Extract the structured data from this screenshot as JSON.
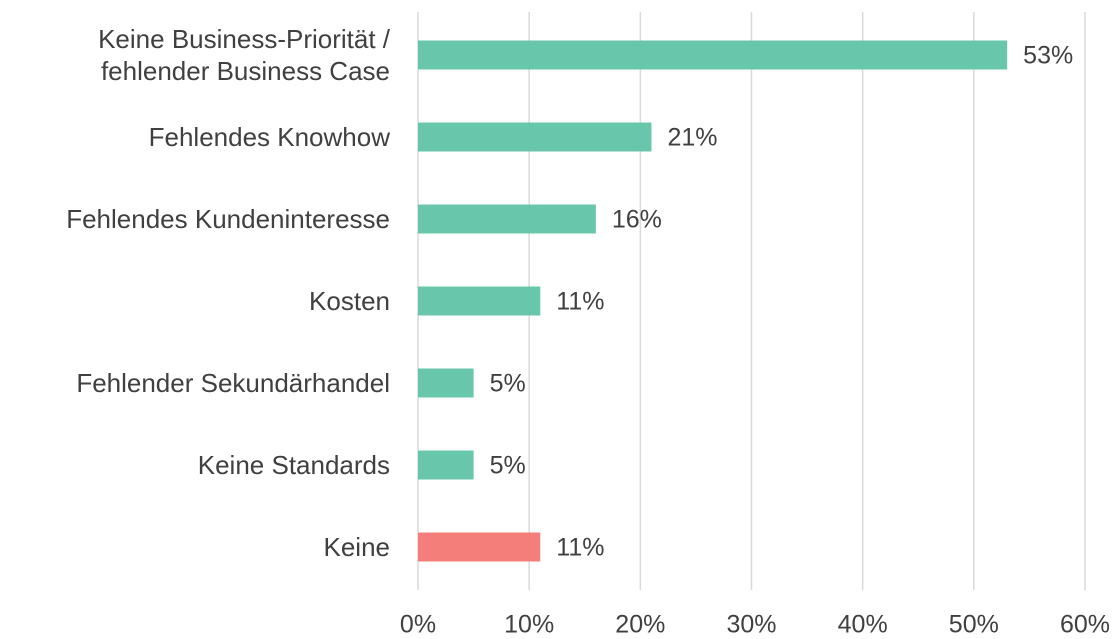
{
  "chart_data": {
    "type": "hbar",
    "categories": [
      "Keine Business-Priorität / fehlender Business Case",
      "Fehlendes Knowhow",
      "Fehlendes Kundeninteresse",
      "Kosten",
      "Fehlender Sekundärhandel",
      "Keine Standards",
      "Keine"
    ],
    "values": [
      53,
      21,
      16,
      11,
      5,
      5,
      11
    ],
    "value_labels": [
      "53%",
      "21%",
      "16%",
      "11%",
      "5%",
      "5%",
      "11%"
    ],
    "colors": [
      "#68c6ab",
      "#68c6ab",
      "#68c6ab",
      "#68c6ab",
      "#68c6ab",
      "#68c6ab",
      "#f47f7a"
    ],
    "xlim": [
      0,
      60
    ],
    "xticks": [
      {
        "value": 0,
        "label": "0%"
      },
      {
        "value": 10,
        "label": "10%"
      },
      {
        "value": 20,
        "label": "20%"
      },
      {
        "value": 30,
        "label": "30%"
      },
      {
        "value": 40,
        "label": "40%"
      },
      {
        "value": 50,
        "label": "50%"
      },
      {
        "value": 60,
        "label": "60%"
      }
    ],
    "grid": true
  }
}
